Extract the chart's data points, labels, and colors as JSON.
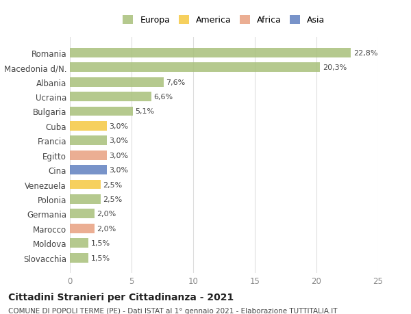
{
  "categories": [
    "Slovacchia",
    "Moldova",
    "Marocco",
    "Germania",
    "Polonia",
    "Venezuela",
    "Cina",
    "Egitto",
    "Francia",
    "Cuba",
    "Bulgaria",
    "Ucraina",
    "Albania",
    "Macedonia d/N.",
    "Romania"
  ],
  "values": [
    1.5,
    1.5,
    2.0,
    2.0,
    2.5,
    2.5,
    3.0,
    3.0,
    3.0,
    3.0,
    5.1,
    6.6,
    7.6,
    20.3,
    22.8
  ],
  "colors": [
    "#a8c07a",
    "#a8c07a",
    "#e8a080",
    "#a8c07a",
    "#a8c07a",
    "#f5c842",
    "#6080c0",
    "#e8a080",
    "#a8c07a",
    "#f5c842",
    "#a8c07a",
    "#a8c07a",
    "#a8c07a",
    "#a8c07a",
    "#a8c07a"
  ],
  "labels": [
    "1,5%",
    "1,5%",
    "2,0%",
    "2,0%",
    "2,5%",
    "2,5%",
    "3,0%",
    "3,0%",
    "3,0%",
    "3,0%",
    "5,1%",
    "6,6%",
    "7,6%",
    "20,3%",
    "22,8%"
  ],
  "legend_labels": [
    "Europa",
    "America",
    "Africa",
    "Asia"
  ],
  "legend_colors": [
    "#a8c07a",
    "#f5c842",
    "#e8a080",
    "#6080c0"
  ],
  "title": "Cittadini Stranieri per Cittadinanza - 2021",
  "subtitle": "COMUNE DI POPOLI TERME (PE) - Dati ISTAT al 1° gennaio 2021 - Elaborazione TUTTITALIA.IT",
  "xlim": [
    0,
    25
  ],
  "xticks": [
    0,
    5,
    10,
    15,
    20,
    25
  ],
  "background_color": "#ffffff",
  "grid_color": "#dddddd",
  "bar_alpha": 0.85
}
